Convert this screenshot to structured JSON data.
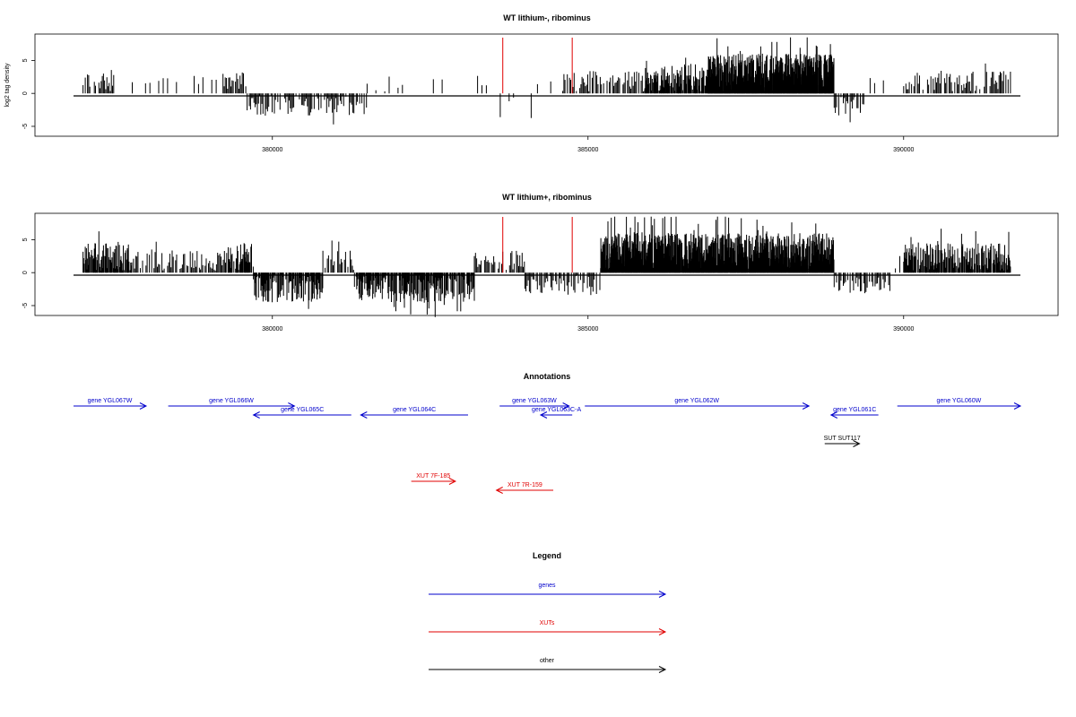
{
  "chart_data": [
    {
      "type": "bar",
      "title": "WT lithium-, ribominus",
      "ylabel": "log2 tag density",
      "xlabel": "",
      "xlim": [
        376850,
        391850
      ],
      "ylim": [
        -6.5,
        9
      ],
      "x_ticks": [
        380000,
        385000,
        390000
      ],
      "y_ticks": [
        -5,
        0,
        5
      ],
      "grid": false,
      "markers": [
        383650,
        384750
      ],
      "bar_color": "#000000",
      "marker_color": "#e00000",
      "segments": [
        {
          "x0": 377000,
          "x1": 377500,
          "level": "low",
          "sign": 1
        },
        {
          "x0": 377500,
          "x1": 379200,
          "level": "sparse",
          "sign": 1
        },
        {
          "x0": 379200,
          "x1": 379600,
          "level": "low",
          "sign": 1
        },
        {
          "x0": 379600,
          "x1": 381500,
          "level": "low",
          "sign": -1
        },
        {
          "x0": 381500,
          "x1": 383400,
          "level": "sparse",
          "sign": 1
        },
        {
          "x0": 383400,
          "x1": 384200,
          "level": "sparse",
          "sign": -1
        },
        {
          "x0": 384200,
          "x1": 384600,
          "level": "sparse",
          "sign": 1
        },
        {
          "x0": 384600,
          "x1": 385900,
          "level": "low",
          "sign": 1
        },
        {
          "x0": 385900,
          "x1": 386900,
          "level": "mid",
          "sign": 1
        },
        {
          "x0": 386900,
          "x1": 388900,
          "level": "high",
          "sign": 1
        },
        {
          "x0": 388900,
          "x1": 389400,
          "level": "low",
          "sign": -1
        },
        {
          "x0": 389400,
          "x1": 390000,
          "level": "sparse",
          "sign": 1
        },
        {
          "x0": 390000,
          "x1": 391700,
          "level": "low",
          "sign": 1
        }
      ]
    },
    {
      "type": "bar",
      "title": "WT lithium+, ribominus",
      "ylabel": "",
      "xlabel": "",
      "xlim": [
        376850,
        391850
      ],
      "ylim": [
        -6.5,
        9
      ],
      "x_ticks": [
        380000,
        385000,
        390000
      ],
      "y_ticks": [
        -5,
        0,
        5
      ],
      "grid": false,
      "markers": [
        383650,
        384750
      ],
      "bar_color": "#000000",
      "marker_color": "#e00000",
      "segments": [
        {
          "x0": 377000,
          "x1": 377800,
          "level": "mid",
          "sign": 1
        },
        {
          "x0": 377800,
          "x1": 379300,
          "level": "low",
          "sign": 1
        },
        {
          "x0": 379300,
          "x1": 379700,
          "level": "mid",
          "sign": 1
        },
        {
          "x0": 379700,
          "x1": 380800,
          "level": "mid",
          "sign": -1
        },
        {
          "x0": 380800,
          "x1": 381300,
          "level": "low",
          "sign": 1
        },
        {
          "x0": 381300,
          "x1": 383200,
          "level": "mid",
          "sign": -1
        },
        {
          "x0": 383200,
          "x1": 384000,
          "level": "low",
          "sign": 1
        },
        {
          "x0": 384000,
          "x1": 385200,
          "level": "low",
          "sign": -1
        },
        {
          "x0": 385200,
          "x1": 386600,
          "level": "high",
          "sign": 1
        },
        {
          "x0": 386600,
          "x1": 388900,
          "level": "high",
          "sign": 1
        },
        {
          "x0": 388900,
          "x1": 389800,
          "level": "low",
          "sign": -1
        },
        {
          "x0": 389800,
          "x1": 390000,
          "level": "sparse",
          "sign": 1
        },
        {
          "x0": 390000,
          "x1": 391700,
          "level": "mid",
          "sign": 1
        }
      ]
    }
  ],
  "annotations": {
    "title": "Annotations",
    "features": [
      {
        "label": "gene YGL067W",
        "x0": 376850,
        "x1": 378000,
        "row": 0,
        "dir": "+",
        "color": "#0000cc"
      },
      {
        "label": "gene YGL066W",
        "x0": 378350,
        "x1": 380350,
        "row": 0,
        "dir": "+",
        "color": "#0000cc"
      },
      {
        "label": "gene YGL065C",
        "x0": 379700,
        "x1": 381250,
        "row": 1,
        "dir": "-",
        "color": "#0000cc"
      },
      {
        "label": "gene YGL064C",
        "x0": 381400,
        "x1": 383100,
        "row": 1,
        "dir": "-",
        "color": "#0000cc"
      },
      {
        "label": "gene YGL063W",
        "x0": 383600,
        "x1": 384700,
        "row": 0,
        "dir": "+",
        "color": "#0000cc"
      },
      {
        "label": "gene YGL063C-A",
        "x0": 384250,
        "x1": 384750,
        "row": 1,
        "dir": "-",
        "color": "#0000cc"
      },
      {
        "label": "gene YGL062W",
        "x0": 384950,
        "x1": 388500,
        "row": 0,
        "dir": "+",
        "color": "#0000cc"
      },
      {
        "label": "gene YGL061C",
        "x0": 388850,
        "x1": 389600,
        "row": 1,
        "dir": "-",
        "color": "#0000cc"
      },
      {
        "label": "gene YGL060W",
        "x0": 389900,
        "x1": 391850,
        "row": 0,
        "dir": "+",
        "color": "#0000cc"
      },
      {
        "label": "SUT SUT117",
        "x0": 388750,
        "x1": 389300,
        "row": 2,
        "dir": "+",
        "color": "#000000"
      },
      {
        "label": "XUT 7F-185",
        "x0": 382200,
        "x1": 382900,
        "row": 3,
        "dir": "+",
        "color": "#e00000"
      },
      {
        "label": "XUT 7R-159",
        "x0": 383550,
        "x1": 384450,
        "row": 4,
        "dir": "-",
        "color": "#e00000"
      }
    ]
  },
  "legend": {
    "title": "Legend",
    "items": [
      {
        "label": "genes",
        "color": "#0000cc"
      },
      {
        "label": "XUTs",
        "color": "#e00000"
      },
      {
        "label": "other",
        "color": "#000000"
      }
    ]
  }
}
